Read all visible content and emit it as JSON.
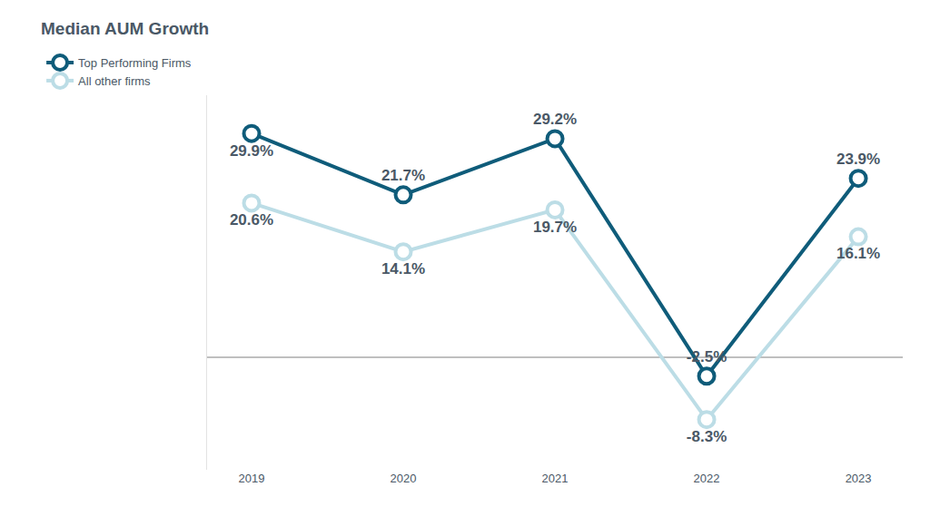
{
  "chart_data": {
    "type": "line",
    "title": "Median AUM Growth",
    "categories": [
      "2019",
      "2020",
      "2021",
      "2022",
      "2023"
    ],
    "series": [
      {
        "name": "Top Performing Firms",
        "color": "#0f5c7a",
        "values": [
          29.9,
          21.7,
          29.2,
          -2.5,
          23.9
        ],
        "value_labels": [
          "29.9%",
          "21.7%",
          "29.2%",
          "-2.5%",
          "23.9%"
        ]
      },
      {
        "name": "All other firms",
        "color": "#bcdde6",
        "values": [
          20.6,
          14.1,
          19.7,
          -8.3,
          16.1
        ],
        "value_labels": [
          "20.6%",
          "14.1%",
          "19.7%",
          "-8.3%",
          "16.1%"
        ]
      }
    ],
    "ylim": [
      -15,
      35
    ],
    "yticks": [
      0
    ],
    "grid": true,
    "legend": "top left",
    "data_labels": true,
    "tick_labels": "x",
    "marker": "circle-open"
  }
}
